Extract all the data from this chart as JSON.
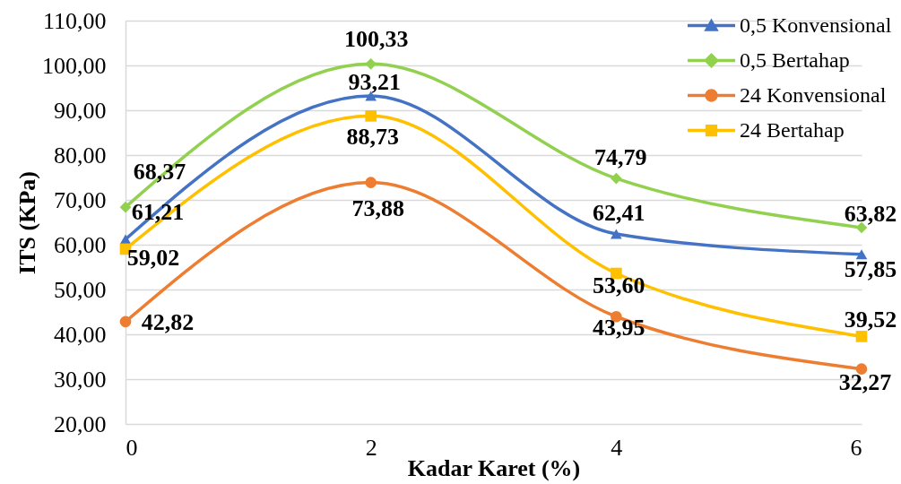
{
  "chart_data": {
    "type": "line",
    "xlabel": "Kadar Karet (%)",
    "ylabel": "ITS (KPa)",
    "x": [
      0,
      2,
      4,
      6
    ],
    "xlim": [
      0,
      6
    ],
    "xticks": [
      0,
      2,
      4,
      6
    ],
    "ylim": [
      20,
      110
    ],
    "yticks": [
      {
        "value": 20,
        "label": "20,00"
      },
      {
        "value": 30,
        "label": "30,00"
      },
      {
        "value": 40,
        "label": "40,00"
      },
      {
        "value": 50,
        "label": "50,00"
      },
      {
        "value": 60,
        "label": "60,00"
      },
      {
        "value": 70,
        "label": "70,00"
      },
      {
        "value": 80,
        "label": "80,00"
      },
      {
        "value": 90,
        "label": "90,00"
      },
      {
        "value": 100,
        "label": "100,00"
      },
      {
        "value": 110,
        "label": "110,00"
      }
    ],
    "grid": "y",
    "legend": "top right",
    "series": [
      {
        "name": "0,5 Konvensional",
        "color": "#4472c4",
        "marker": "triangle",
        "values": [
          61.21,
          93.21,
          62.41,
          57.85
        ],
        "value_labels": [
          "61,21",
          "93,21",
          "62,41",
          "57,85"
        ]
      },
      {
        "name": "0,5 Bertahap",
        "color": "#92d050",
        "marker": "diamond",
        "values": [
          68.37,
          100.33,
          74.79,
          63.82
        ],
        "value_labels": [
          "68,37",
          "100,33",
          "74,79",
          "63,82"
        ]
      },
      {
        "name": "24 Konvensional",
        "color": "#ed7d31",
        "marker": "circle",
        "values": [
          42.82,
          73.88,
          43.95,
          32.27
        ],
        "value_labels": [
          "42,82",
          "73,88",
          "43,95",
          "32,27"
        ]
      },
      {
        "name": "24 Bertahap",
        "color": "#ffc000",
        "marker": "square",
        "values": [
          59.02,
          88.73,
          53.6,
          39.52
        ],
        "value_labels": [
          "59,02",
          "88,73",
          "53,60",
          "39,52"
        ]
      }
    ]
  }
}
